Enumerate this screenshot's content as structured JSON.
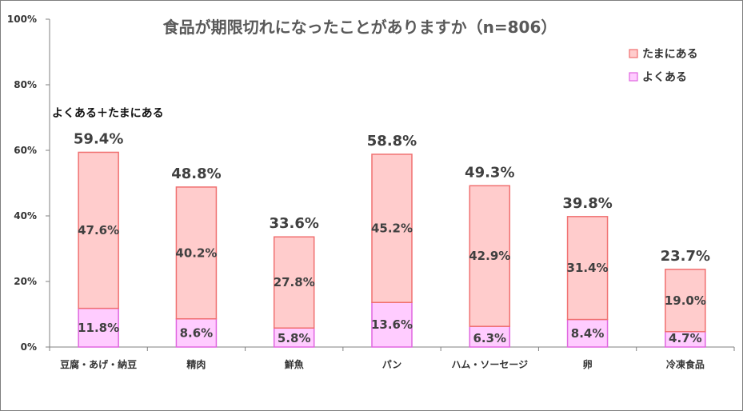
{
  "chart_data": {
    "type": "bar",
    "stacked": true,
    "title": "食品が期限切れになったことがありますか（n=806）",
    "categories": [
      "豆腐・あげ・納豆",
      "精肉",
      "鮮魚",
      "パン",
      "ハム・ソーセージ",
      "卵",
      "冷凍食品"
    ],
    "series": [
      {
        "name": "よくある",
        "color": "#ffccff",
        "stroke": "#e066e0",
        "values": [
          11.8,
          8.6,
          5.8,
          13.6,
          6.3,
          8.4,
          4.7
        ],
        "labels": [
          "11.8%",
          "8.6%",
          "5.8%",
          "13.6%",
          "6.3%",
          "8.4%",
          "4.7%"
        ]
      },
      {
        "name": "たまにある",
        "color": "#ffcccc",
        "stroke": "#f07070",
        "values": [
          47.6,
          40.2,
          27.8,
          45.2,
          42.9,
          31.4,
          19.0
        ],
        "labels": [
          "47.6%",
          "40.2%",
          "27.8%",
          "45.2%",
          "42.9%",
          "31.4%",
          "19.0%"
        ]
      }
    ],
    "totals": [
      59.4,
      48.8,
      33.6,
      58.8,
      49.3,
      39.8,
      23.7
    ],
    "total_labels": [
      "59.4%",
      "48.8%",
      "33.6%",
      "58.8%",
      "49.3%",
      "39.8%",
      "23.7%"
    ],
    "total_caption": "よくある＋たまにある",
    "ylim": [
      0,
      100
    ],
    "yticks": [
      0,
      20,
      40,
      60,
      80,
      100
    ],
    "ytick_labels": [
      "0%",
      "20%",
      "40%",
      "60%",
      "80%",
      "100%"
    ],
    "legend": {
      "placement": "top-right",
      "entries": [
        {
          "label": "たまにある",
          "color": "#ffcccc",
          "stroke": "#f07070"
        },
        {
          "label": "よくある",
          "color": "#ffccff",
          "stroke": "#e066e0"
        }
      ]
    },
    "grid": false,
    "axis_color": "#808080"
  }
}
